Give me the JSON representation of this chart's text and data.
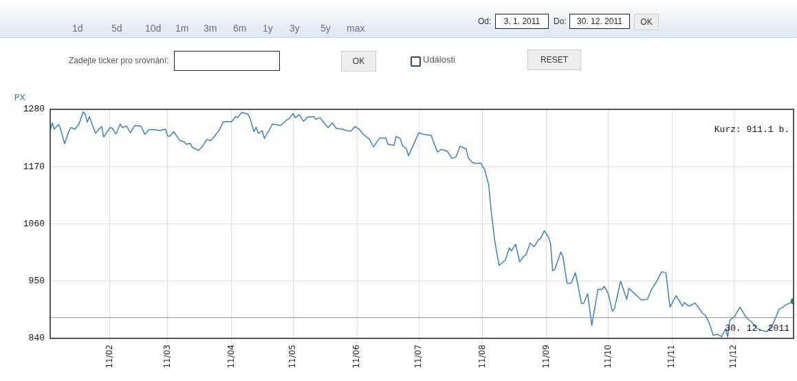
{
  "chart_data": {
    "type": "line",
    "x": [
      "2011-01-03",
      "2011-01-04",
      "2011-01-05",
      "2011-01-07",
      "2011-01-08",
      "2011-01-10",
      "2011-01-12",
      "2011-01-13",
      "2011-01-15",
      "2011-01-17",
      "2011-01-19",
      "2011-01-20",
      "2011-01-21",
      "2011-01-22",
      "2011-01-25",
      "2011-01-27",
      "2011-01-28",
      "2011-01-29",
      "2011-02-01",
      "2011-02-02",
      "2011-02-04",
      "2011-02-06",
      "2011-02-07",
      "2011-02-09",
      "2011-02-11",
      "2011-02-13",
      "2011-02-16",
      "2011-02-18",
      "2011-02-20",
      "2011-02-23",
      "2011-02-25",
      "2011-02-28",
      "2011-03-01",
      "2011-03-02",
      "2011-03-04",
      "2011-03-07",
      "2011-03-09",
      "2011-03-10",
      "2011-03-12",
      "2011-03-13",
      "2011-03-16",
      "2011-03-18",
      "2011-03-20",
      "2011-03-22",
      "2011-03-26",
      "2011-03-28",
      "2011-03-31",
      "2011-04-01",
      "2011-04-03",
      "2011-04-04",
      "2011-04-06",
      "2011-04-09",
      "2011-04-10",
      "2011-04-12",
      "2011-04-13",
      "2011-04-14",
      "2011-04-16",
      "2011-04-17",
      "2011-04-21",
      "2011-04-25",
      "2011-04-28",
      "2011-04-29",
      "2011-05-01",
      "2011-05-02",
      "2011-05-04",
      "2011-05-06",
      "2011-05-08",
      "2011-05-11",
      "2011-05-12",
      "2011-05-14",
      "2011-05-16",
      "2011-05-18",
      "2011-05-20",
      "2011-05-22",
      "2011-05-25",
      "2011-05-27",
      "2011-05-29",
      "2011-05-31",
      "2011-06-02",
      "2011-06-04",
      "2011-06-07",
      "2011-06-09",
      "2011-06-12",
      "2011-06-15",
      "2011-06-16",
      "2011-06-19",
      "2011-06-20",
      "2011-06-22",
      "2011-06-23",
      "2011-06-25",
      "2011-06-26",
      "2011-06-29",
      "2011-07-01",
      "2011-07-03",
      "2011-07-07",
      "2011-07-10",
      "2011-07-12",
      "2011-07-15",
      "2011-07-17",
      "2011-07-19",
      "2011-07-21",
      "2011-07-24",
      "2011-07-25",
      "2011-07-27",
      "2011-07-29",
      "2011-07-31",
      "2011-08-02",
      "2011-08-04",
      "2011-08-05",
      "2011-08-07",
      "2011-08-09",
      "2011-08-11",
      "2011-08-12",
      "2011-08-14",
      "2011-08-15",
      "2011-08-17",
      "2011-08-19",
      "2011-08-21",
      "2011-08-22",
      "2011-08-24",
      "2011-08-26",
      "2011-08-28",
      "2011-08-29",
      "2011-08-31",
      "2011-09-02",
      "2011-09-03",
      "2011-09-04",
      "2011-09-05",
      "2011-09-08",
      "2011-09-09",
      "2011-09-11",
      "2011-09-13",
      "2011-09-15",
      "2011-09-16",
      "2011-09-18",
      "2011-09-19",
      "2011-09-21",
      "2011-09-23",
      "2011-09-26",
      "2011-09-28",
      "2011-09-29",
      "2011-10-01",
      "2011-10-03",
      "2011-10-04",
      "2011-10-07",
      "2011-10-10",
      "2011-10-11",
      "2011-10-14",
      "2011-10-16",
      "2011-10-17",
      "2011-10-20",
      "2011-10-22",
      "2011-10-24",
      "2011-10-27",
      "2011-10-29",
      "2011-10-31",
      "2011-11-03",
      "2011-11-06",
      "2011-11-07",
      "2011-11-09",
      "2011-11-10",
      "2011-11-12",
      "2011-11-13",
      "2011-11-16",
      "2011-11-17",
      "2011-11-19",
      "2011-11-21",
      "2011-11-23",
      "2011-11-25",
      "2011-11-27",
      "2011-11-28",
      "2011-11-29",
      "2011-12-01",
      "2011-12-04",
      "2011-12-07",
      "2011-12-10",
      "2011-12-12",
      "2011-12-14",
      "2011-12-17",
      "2011-12-20",
      "2011-12-23",
      "2011-12-25",
      "2011-12-26",
      "2011-12-30"
    ],
    "series": [
      {
        "name": "PX",
        "color": "#3a7fcc",
        "values": [
          1239,
          1254,
          1242,
          1251,
          1243,
          1214,
          1237,
          1245,
          1242,
          1252,
          1275,
          1271,
          1255,
          1266,
          1234,
          1243,
          1247,
          1227,
          1245,
          1244,
          1233,
          1252,
          1245,
          1248,
          1235,
          1249,
          1248,
          1232,
          1241,
          1241,
          1239,
          1242,
          1229,
          1228,
          1237,
          1220,
          1218,
          1213,
          1215,
          1207,
          1201,
          1209,
          1222,
          1220,
          1239,
          1256,
          1257,
          1256,
          1266,
          1264,
          1274,
          1271,
          1263,
          1237,
          1246,
          1234,
          1239,
          1224,
          1252,
          1249,
          1260,
          1262,
          1272,
          1264,
          1270,
          1257,
          1265,
          1266,
          1261,
          1264,
          1254,
          1245,
          1254,
          1243,
          1242,
          1239,
          1238,
          1247,
          1242,
          1232,
          1223,
          1208,
          1225,
          1225,
          1213,
          1211,
          1228,
          1224,
          1211,
          1204,
          1191,
          1217,
          1235,
          1232,
          1230,
          1198,
          1203,
          1199,
          1186,
          1188,
          1209,
          1204,
          1187,
          1178,
          1176,
          1177,
          1164,
          1134,
          1090,
          1024,
          980,
          987,
          990,
          1014,
          1008,
          1021,
          987,
          998,
          1000,
          1023,
          1016,
          1029,
          1031,
          1047,
          1034,
          1022,
          970,
          972,
          1006,
          997,
          946,
          946,
          966,
          948,
          907,
          907,
          926,
          865,
          934,
          934,
          940,
          926,
          892,
          897,
          950,
          915,
          936,
          925,
          918,
          914,
          915,
          934,
          946,
          968,
          966,
          900,
          922,
          902,
          909,
          902,
          903,
          908,
          904,
          887,
          885,
          870,
          846,
          848,
          843,
          858,
          843,
          875,
          880,
          900,
          880,
          870,
          860,
          856,
          853,
          868,
          896,
          900,
          904,
          911.1
        ]
      },
      {
        "type": "scatter",
        "color": "#1f7a1f",
        "x": [
          "2011-12-30"
        ],
        "values": [
          911.1
        ]
      }
    ],
    "xlim": [
      "2011-01-03",
      "2011-12-30"
    ],
    "xticks": [
      {
        "value": "2011-02-01",
        "label": "11/02"
      },
      {
        "value": "2011-03-01",
        "label": "11/03"
      },
      {
        "value": "2011-04-01",
        "label": "11/04"
      },
      {
        "value": "2011-05-01",
        "label": "11/05"
      },
      {
        "value": "2011-06-01",
        "label": "11/06"
      },
      {
        "value": "2011-07-01",
        "label": "11/07"
      },
      {
        "value": "2011-08-01",
        "label": "11/08"
      },
      {
        "value": "2011-09-01",
        "label": "11/09"
      },
      {
        "value": "2011-10-01",
        "label": "11/10"
      },
      {
        "value": "2011-11-01",
        "label": "11/11"
      },
      {
        "value": "2011-12-01",
        "label": "11/12"
      }
    ],
    "ylim": [
      840,
      1280
    ],
    "yticks": [
      840,
      950,
      1060,
      1170,
      1280
    ],
    "grid": true,
    "legend": "top left",
    "ref_lines": [
      {
        "axis": "y",
        "value": 880,
        "color": "#8c8c8c"
      }
    ],
    "annotations": [
      "1d",
      "5d",
      "10d",
      "1m",
      "3m",
      "6m",
      "1y",
      "3y",
      "5y",
      "max",
      "Od:",
      "3. 1. 2011",
      "Do:",
      "30. 12. 2011",
      "OK",
      "Zadejte ticker pro srovnání:",
      "OK",
      "Události",
      "RESET",
      "Kurz: 911.1 b.",
      "30. 12. 2011"
    ]
  }
}
